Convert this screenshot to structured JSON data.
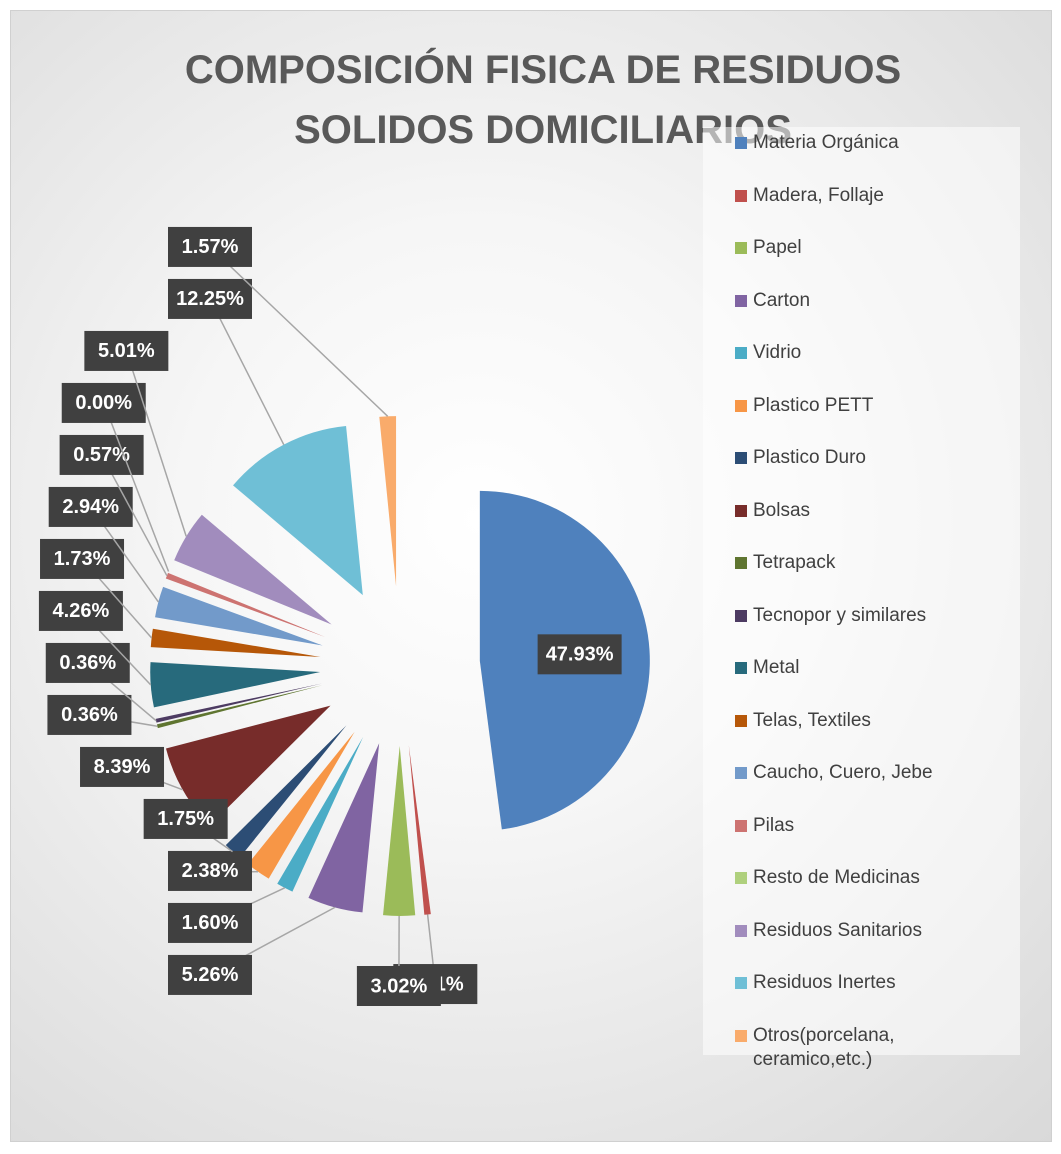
{
  "chart_data": {
    "type": "pie",
    "title": "COMPOSICIÓN FISICA DE RESIDUOS SOLIDOS DOMICILIARIOS",
    "categories": [
      "Materia Orgánica",
      "Madera, Follaje",
      "Papel",
      "Carton",
      "Vidrio",
      "Plastico PETT",
      "Plastico Duro",
      "Bolsas",
      "Tetrapack",
      "Tecnopor y similares",
      "Metal",
      "Telas, Textiles",
      "Caucho, Cuero, Jebe",
      "Pilas",
      "Resto de Medicinas",
      "Residuos Sanitarios",
      "Residuos Inertes",
      "Otros(porcelana, ceramico,etc.)"
    ],
    "values": [
      47.93,
      0.61,
      3.02,
      5.26,
      1.6,
      2.38,
      1.75,
      8.39,
      0.36,
      0.36,
      4.26,
      1.73,
      2.94,
      0.57,
      0.0,
      5.01,
      12.25,
      1.57
    ],
    "value_labels": [
      "47.93%",
      "0.61%",
      "3.02%",
      "5.26%",
      "1.60%",
      "2.38%",
      "1.75%",
      "8.39%",
      "0.36%",
      "0.36%",
      "4.26%",
      "1.73%",
      "2.94%",
      "0.57%",
      "0.00%",
      "5.01%",
      "12.25%",
      "1.57%"
    ],
    "colors": [
      "#4f81bd",
      "#c0504d",
      "#9bbb59",
      "#8064a2",
      "#4bacc6",
      "#f79646",
      "#2c4d75",
      "#772c2a",
      "#5f7530",
      "#4d3b62",
      "#276a7c",
      "#b65708",
      "#729aca",
      "#cd7371",
      "#afd07d",
      "#a18cbd",
      "#6fbfd6",
      "#f9ab6b"
    ],
    "legend": "right"
  }
}
